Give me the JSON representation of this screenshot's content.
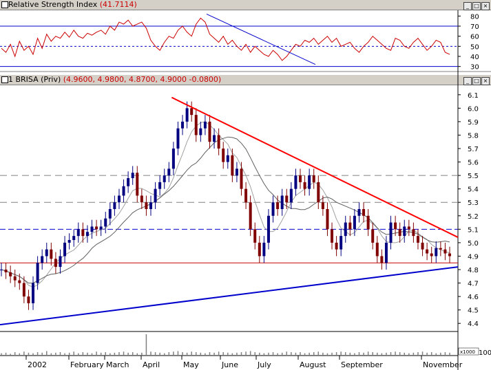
{
  "rsi_panel": {
    "title": "Relative Strength Index",
    "value": "(41.7114)",
    "y_ticks": [
      "80",
      "70",
      "60",
      "50",
      "40",
      "30"
    ]
  },
  "price_panel": {
    "title": "1 BRISA (Priv)",
    "values": "(4.9600, 4.9800, 4.8700, 4.9000 -0.0800)",
    "y_ticks": [
      "6.1",
      "6.0",
      "5.9",
      "5.8",
      "5.7",
      "5.6",
      "5.5",
      "5.4",
      "5.3",
      "5.2",
      "5.1",
      "5.0",
      "4.9",
      "4.8",
      "4.7",
      "4.6",
      "4.5",
      "4.4"
    ]
  },
  "volume_panel": {
    "y_label": "100",
    "unit": "x1000"
  },
  "x_axis": {
    "labels": [
      "2002",
      "February",
      "March",
      "April",
      "May",
      "June",
      "July",
      "August",
      "September",
      "November"
    ]
  },
  "chart_data": [
    {
      "type": "line",
      "name": "rsi",
      "ylim": [
        25,
        85
      ],
      "reference_lines": [
        70,
        50,
        30
      ],
      "x_range": [
        0,
        100
      ],
      "values": [
        48,
        44,
        52,
        40,
        55,
        46,
        50,
        42,
        58,
        48,
        62,
        55,
        60,
        58,
        64,
        59,
        66,
        60,
        58,
        63,
        61,
        64,
        66,
        62,
        70,
        66,
        74,
        72,
        76,
        70,
        72,
        74,
        68,
        56,
        50,
        46,
        54,
        60,
        58,
        66,
        70,
        64,
        60,
        72,
        78,
        74,
        62,
        58,
        54,
        60,
        52,
        56,
        50,
        46,
        52,
        44,
        50,
        46,
        42,
        40,
        46,
        42,
        36,
        40,
        46,
        52,
        50,
        56,
        54,
        58,
        52,
        56,
        60,
        54,
        58,
        50,
        52,
        54,
        48,
        44,
        50,
        54,
        60,
        56,
        52,
        48,
        46,
        58,
        56,
        50,
        48,
        54,
        58,
        52,
        46,
        50,
        56,
        54,
        44,
        42
      ]
    },
    {
      "type": "candlestick",
      "name": "BRISA",
      "ylim": [
        4.35,
        6.15
      ],
      "x_range": [
        0,
        100
      ],
      "close": [
        4.8,
        4.78,
        4.75,
        4.72,
        4.7,
        4.6,
        4.55,
        4.7,
        4.85,
        4.9,
        4.95,
        4.88,
        4.82,
        4.9,
        5.0,
        5.02,
        5.05,
        5.1,
        5.05,
        5.08,
        5.12,
        5.1,
        5.12,
        5.18,
        5.25,
        5.3,
        5.35,
        5.42,
        5.48,
        5.52,
        5.35,
        5.3,
        5.25,
        5.3,
        5.4,
        5.45,
        5.5,
        5.55,
        5.7,
        5.85,
        5.9,
        6.0,
        5.95,
        5.8,
        5.85,
        5.9,
        5.75,
        5.8,
        5.7,
        5.6,
        5.65,
        5.5,
        5.55,
        5.4,
        5.3,
        5.1,
        5.0,
        4.9,
        5.0,
        5.2,
        5.3,
        5.25,
        5.35,
        5.3,
        5.4,
        5.5,
        5.45,
        5.4,
        5.5,
        5.45,
        5.3,
        5.25,
        5.1,
        5.0,
        4.95,
        5.05,
        5.15,
        5.1,
        5.2,
        5.25,
        5.2,
        5.1,
        5.0,
        4.9,
        4.85,
        5.0,
        5.15,
        5.1,
        5.05,
        5.12,
        5.1,
        5.05,
        5.0,
        4.95,
        4.92,
        4.9,
        4.96,
        4.95,
        4.92,
        4.9
      ],
      "trendlines": [
        {
          "name": "resistance",
          "x": [
            38,
            100
          ],
          "y": [
            6.08,
            5.04
          ],
          "color": "#ff0000"
        },
        {
          "name": "support",
          "x": [
            0,
            100
          ],
          "y": [
            4.39,
            4.82
          ],
          "color": "#0000cc"
        }
      ],
      "reference_lines": [
        5.5,
        5.3,
        5.1,
        4.85
      ]
    },
    {
      "type": "bar",
      "name": "volume",
      "x_range": [
        0,
        100
      ],
      "values": [
        3,
        4,
        2,
        5,
        3,
        6,
        4,
        3,
        5,
        4,
        7,
        3,
        4,
        5,
        3,
        4,
        6,
        3,
        5,
        4,
        3,
        6,
        4,
        5,
        3,
        4,
        5,
        6,
        4,
        5,
        3,
        4,
        38,
        6,
        5,
        4,
        3,
        5,
        6,
        7,
        5,
        4,
        6,
        5,
        4,
        3,
        5,
        4,
        6,
        5,
        4,
        3,
        4,
        5,
        6,
        7,
        5,
        4,
        3,
        4,
        5,
        3,
        4,
        6,
        5,
        4,
        5,
        3,
        4,
        5,
        6,
        4,
        3,
        4,
        5,
        6,
        5,
        4,
        3,
        5,
        4,
        6,
        5,
        4,
        3,
        4,
        5,
        6,
        5,
        4,
        3,
        4,
        5,
        6,
        4,
        5,
        3,
        4,
        5,
        4
      ]
    }
  ]
}
